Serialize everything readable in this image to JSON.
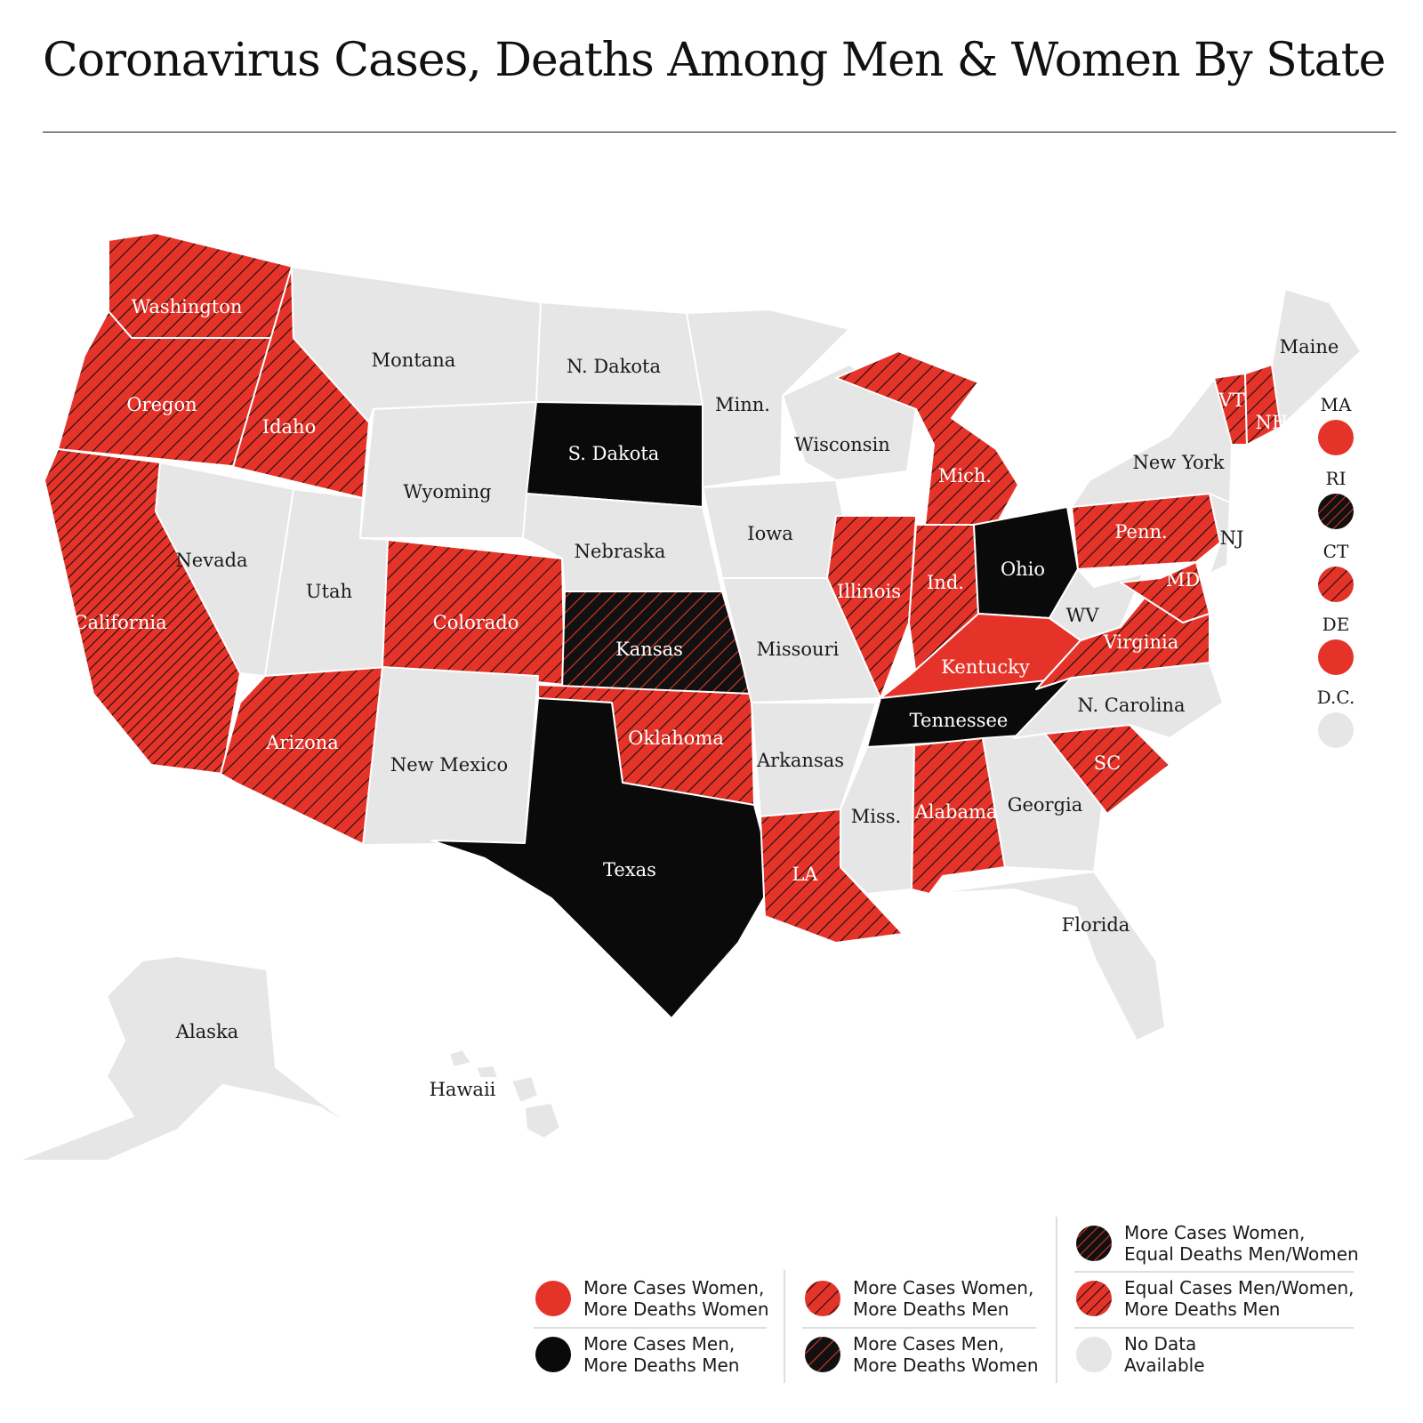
{
  "title": "Coronavirus Cases, Deaths Among Men & Women By State",
  "colors": {
    "red": "#e63329",
    "black": "#0a0a0a",
    "gray": "#e6e6e6",
    "hatch_dark": "#111111",
    "hatch_red": "#e63329"
  },
  "categories": {
    "women_women": "More Cases Women, More Deaths Women",
    "men_men": "More Cases Men, More Deaths Men",
    "women_men": "More Cases Women, More Deaths Men",
    "men_women": "More Cases Men, More Deaths Women",
    "women_equal": "More Cases Women, Equal Deaths Men/Women",
    "equal_men": "Equal Cases Men/Women, More Deaths Men",
    "no_data": "No Data Available"
  },
  "states": [
    {
      "label": "Washington",
      "category": "women_men"
    },
    {
      "label": "Oregon",
      "category": "women_men"
    },
    {
      "label": "Idaho",
      "category": "women_men"
    },
    {
      "label": "California",
      "category": "equal_men"
    },
    {
      "label": "Nevada",
      "category": "no_data"
    },
    {
      "label": "Utah",
      "category": "no_data"
    },
    {
      "label": "Arizona",
      "category": "women_men"
    },
    {
      "label": "Montana",
      "category": "no_data"
    },
    {
      "label": "Wyoming",
      "category": "no_data"
    },
    {
      "label": "Colorado",
      "category": "women_men"
    },
    {
      "label": "New Mexico",
      "category": "no_data"
    },
    {
      "label": "N. Dakota",
      "category": "no_data"
    },
    {
      "label": "S. Dakota",
      "category": "men_men"
    },
    {
      "label": "Nebraska",
      "category": "no_data"
    },
    {
      "label": "Kansas",
      "category": "men_women"
    },
    {
      "label": "Oklahoma",
      "category": "women_men"
    },
    {
      "label": "Texas",
      "category": "men_men"
    },
    {
      "label": "Minn.",
      "category": "no_data"
    },
    {
      "label": "Iowa",
      "category": "no_data"
    },
    {
      "label": "Missouri",
      "category": "no_data"
    },
    {
      "label": "Arkansas",
      "category": "no_data"
    },
    {
      "label": "LA",
      "category": "women_men"
    },
    {
      "label": "Wisconsin",
      "category": "no_data"
    },
    {
      "label": "Illinois",
      "category": "women_men"
    },
    {
      "label": "Mich.",
      "category": "women_men"
    },
    {
      "label": "Ind.",
      "category": "women_men"
    },
    {
      "label": "Ohio",
      "category": "men_men"
    },
    {
      "label": "Kentucky",
      "category": "women_women"
    },
    {
      "label": "Tennessee",
      "category": "men_men"
    },
    {
      "label": "Miss.",
      "category": "no_data"
    },
    {
      "label": "Alabama",
      "category": "women_men"
    },
    {
      "label": "Georgia",
      "category": "no_data"
    },
    {
      "label": "Florida",
      "category": "no_data"
    },
    {
      "label": "SC",
      "category": "women_men"
    },
    {
      "label": "N. Carolina",
      "category": "no_data"
    },
    {
      "label": "Virginia",
      "category": "women_men"
    },
    {
      "label": "WV",
      "category": "no_data"
    },
    {
      "label": "MD",
      "category": "women_men"
    },
    {
      "label": "Penn.",
      "category": "women_men"
    },
    {
      "label": "NJ",
      "category": "no_data"
    },
    {
      "label": "New York",
      "category": "no_data"
    },
    {
      "label": "VT",
      "category": "women_men"
    },
    {
      "label": "NH",
      "category": "women_men"
    },
    {
      "label": "Maine",
      "category": "no_data"
    },
    {
      "label": "Alaska",
      "category": "no_data"
    },
    {
      "label": "Hawaii",
      "category": "no_data"
    }
  ],
  "side_markers": [
    {
      "label": "MA",
      "category": "women_women"
    },
    {
      "label": "RI",
      "category": "women_equal"
    },
    {
      "label": "CT",
      "category": "women_men"
    },
    {
      "label": "DE",
      "category": "women_women"
    },
    {
      "label": "D.C.",
      "category": "no_data"
    }
  ],
  "legend": [
    {
      "category": "women_women",
      "line1": "More Cases Women,",
      "line2": "More Deaths Women"
    },
    {
      "category": "men_men",
      "line1": "More Cases Men,",
      "line2": "More Deaths Men"
    },
    {
      "category": "women_men",
      "line1": "More Cases Women,",
      "line2": "More Deaths Men"
    },
    {
      "category": "men_women",
      "line1": "More Cases Men,",
      "line2": "More Deaths Women"
    },
    {
      "category": "women_equal",
      "line1": "More Cases Women,",
      "line2": "Equal Deaths Men/Women"
    },
    {
      "category": "equal_men",
      "line1": "Equal Cases Men/Women,",
      "line2": "More Deaths Men"
    },
    {
      "category": "no_data",
      "line1": "No Data",
      "line2": "Available"
    }
  ]
}
